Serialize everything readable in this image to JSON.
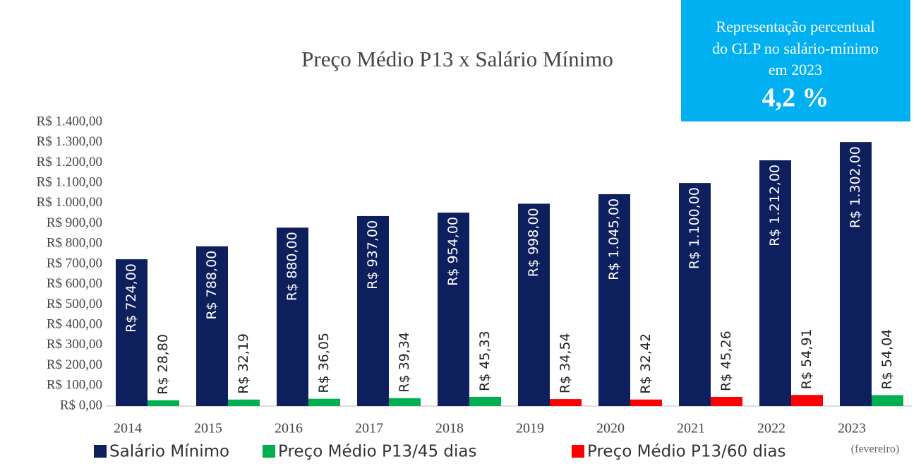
{
  "chart_data": {
    "type": "bar",
    "title": "Preço Médio P13 x Salário Mínimo",
    "annotations": [
      "Representação percentual",
      "do GLP no salário-mínimo",
      "em 2023",
      "4,2 %",
      "(fevereiro)"
    ],
    "categories": [
      "2014",
      "2015",
      "2016",
      "2017",
      "2018",
      "2019",
      "2020",
      "2021",
      "2022",
      "2023"
    ],
    "series": [
      {
        "name": "Salário Mínimo",
        "color": "#0d1f5c",
        "values": [
          724,
          788,
          880,
          937,
          954,
          998,
          1045,
          1100,
          1212,
          1302
        ],
        "value_labels": [
          "R$ 724,00",
          "R$ 788,00",
          "R$ 880,00",
          "R$ 937,00",
          "R$ 954,00",
          "R$ 998,00",
          "R$ 1.045,00",
          "R$ 1.100,00",
          "R$ 1.212,00",
          "R$ 1.302,00"
        ]
      },
      {
        "name": "Preço Médio P13/45 dias",
        "color": "#00b050",
        "values": [
          28.8,
          32.19,
          36.05,
          39.34,
          45.33,
          null,
          null,
          null,
          null,
          54.04
        ],
        "value_labels": [
          "R$ 28,80",
          "R$ 32,19",
          "R$ 36,05",
          "R$ 39,34",
          "R$ 45,33",
          null,
          null,
          null,
          null,
          "R$ 54,04"
        ]
      },
      {
        "name": "Preço Médio P13/60 dias",
        "color": "#ff0000",
        "values": [
          null,
          null,
          null,
          null,
          null,
          34.54,
          32.42,
          45.26,
          54.91,
          null
        ],
        "value_labels": [
          null,
          null,
          null,
          null,
          null,
          "R$ 34,54",
          "R$ 32,42",
          "R$ 45,26",
          "R$ 54,91",
          null
        ]
      }
    ],
    "ylim": [
      0,
      1400
    ],
    "yticks": [
      {
        "value": 0,
        "label": "R$ 0,00"
      },
      {
        "value": 100,
        "label": "R$ 100,00"
      },
      {
        "value": 200,
        "label": "R$ 200,00"
      },
      {
        "value": 300,
        "label": "R$ 300,00"
      },
      {
        "value": 400,
        "label": "R$ 400,00"
      },
      {
        "value": 500,
        "label": "R$ 500,00"
      },
      {
        "value": 600,
        "label": "R$ 600,00"
      },
      {
        "value": 700,
        "label": "R$ 700,00"
      },
      {
        "value": 800,
        "label": "R$ 800,00"
      },
      {
        "value": 900,
        "label": "R$ 900,00"
      },
      {
        "value": 1000,
        "label": "R$ 1.000,00"
      },
      {
        "value": 1100,
        "label": "R$ 1.100,00"
      },
      {
        "value": 1200,
        "label": "R$ 1.200,00"
      },
      {
        "value": 1300,
        "label": "R$ 1.300,00"
      },
      {
        "value": 1400,
        "label": "R$ 1.400,00"
      }
    ],
    "grid": false
  }
}
